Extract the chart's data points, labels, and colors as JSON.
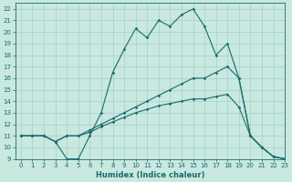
{
  "title": "",
  "xlabel": "Humidex (Indice chaleur)",
  "xlim": [
    -0.5,
    23
  ],
  "ylim": [
    9,
    22.5
  ],
  "yticks": [
    9,
    10,
    11,
    12,
    13,
    14,
    15,
    16,
    17,
    18,
    19,
    20,
    21,
    22
  ],
  "xticks": [
    0,
    1,
    2,
    3,
    4,
    5,
    6,
    7,
    8,
    9,
    10,
    11,
    12,
    13,
    14,
    15,
    16,
    17,
    18,
    19,
    20,
    21,
    22,
    23
  ],
  "bg_color": "#c8e8e0",
  "line_color": "#1a6b6b",
  "grid_color": "#aad4cc",
  "line1_x": [
    0,
    1,
    2,
    3,
    4,
    5,
    6,
    7,
    8,
    9,
    10,
    11,
    12,
    13,
    14,
    15,
    16,
    17,
    18,
    19,
    20,
    21,
    22,
    23
  ],
  "line1_y": [
    11,
    11,
    11,
    10.5,
    9,
    9,
    11,
    13,
    16.5,
    18.5,
    20.3,
    19.5,
    21,
    20.5,
    21.5,
    22,
    20.5,
    18,
    19,
    16,
    11,
    10,
    9.2,
    9
  ],
  "line2_x": [
    0,
    1,
    2,
    3,
    4,
    5,
    6,
    7,
    8,
    9,
    10,
    11,
    12,
    13,
    14,
    15,
    16,
    17,
    18,
    19,
    20,
    21,
    22,
    23
  ],
  "line2_y": [
    11,
    11,
    11,
    10.5,
    11,
    11,
    11.5,
    12,
    12.5,
    13,
    13.5,
    14,
    14.5,
    15,
    15.5,
    16,
    16,
    16.5,
    17,
    16,
    11,
    10,
    9.2,
    9
  ],
  "line3_x": [
    0,
    1,
    2,
    3,
    4,
    5,
    6,
    7,
    8,
    9,
    10,
    11,
    12,
    13,
    14,
    15,
    16,
    17,
    18,
    19,
    20,
    21,
    22,
    23
  ],
  "line3_y": [
    11,
    11,
    11,
    10.5,
    11,
    11,
    11.3,
    11.8,
    12.2,
    12.6,
    13.0,
    13.3,
    13.6,
    13.8,
    14.0,
    14.2,
    14.2,
    14.4,
    14.6,
    13.5,
    11,
    10,
    9.2,
    9
  ],
  "lw": 0.8,
  "ms": 1.8,
  "tick_fontsize": 5.0,
  "xlabel_fontsize": 6.0
}
